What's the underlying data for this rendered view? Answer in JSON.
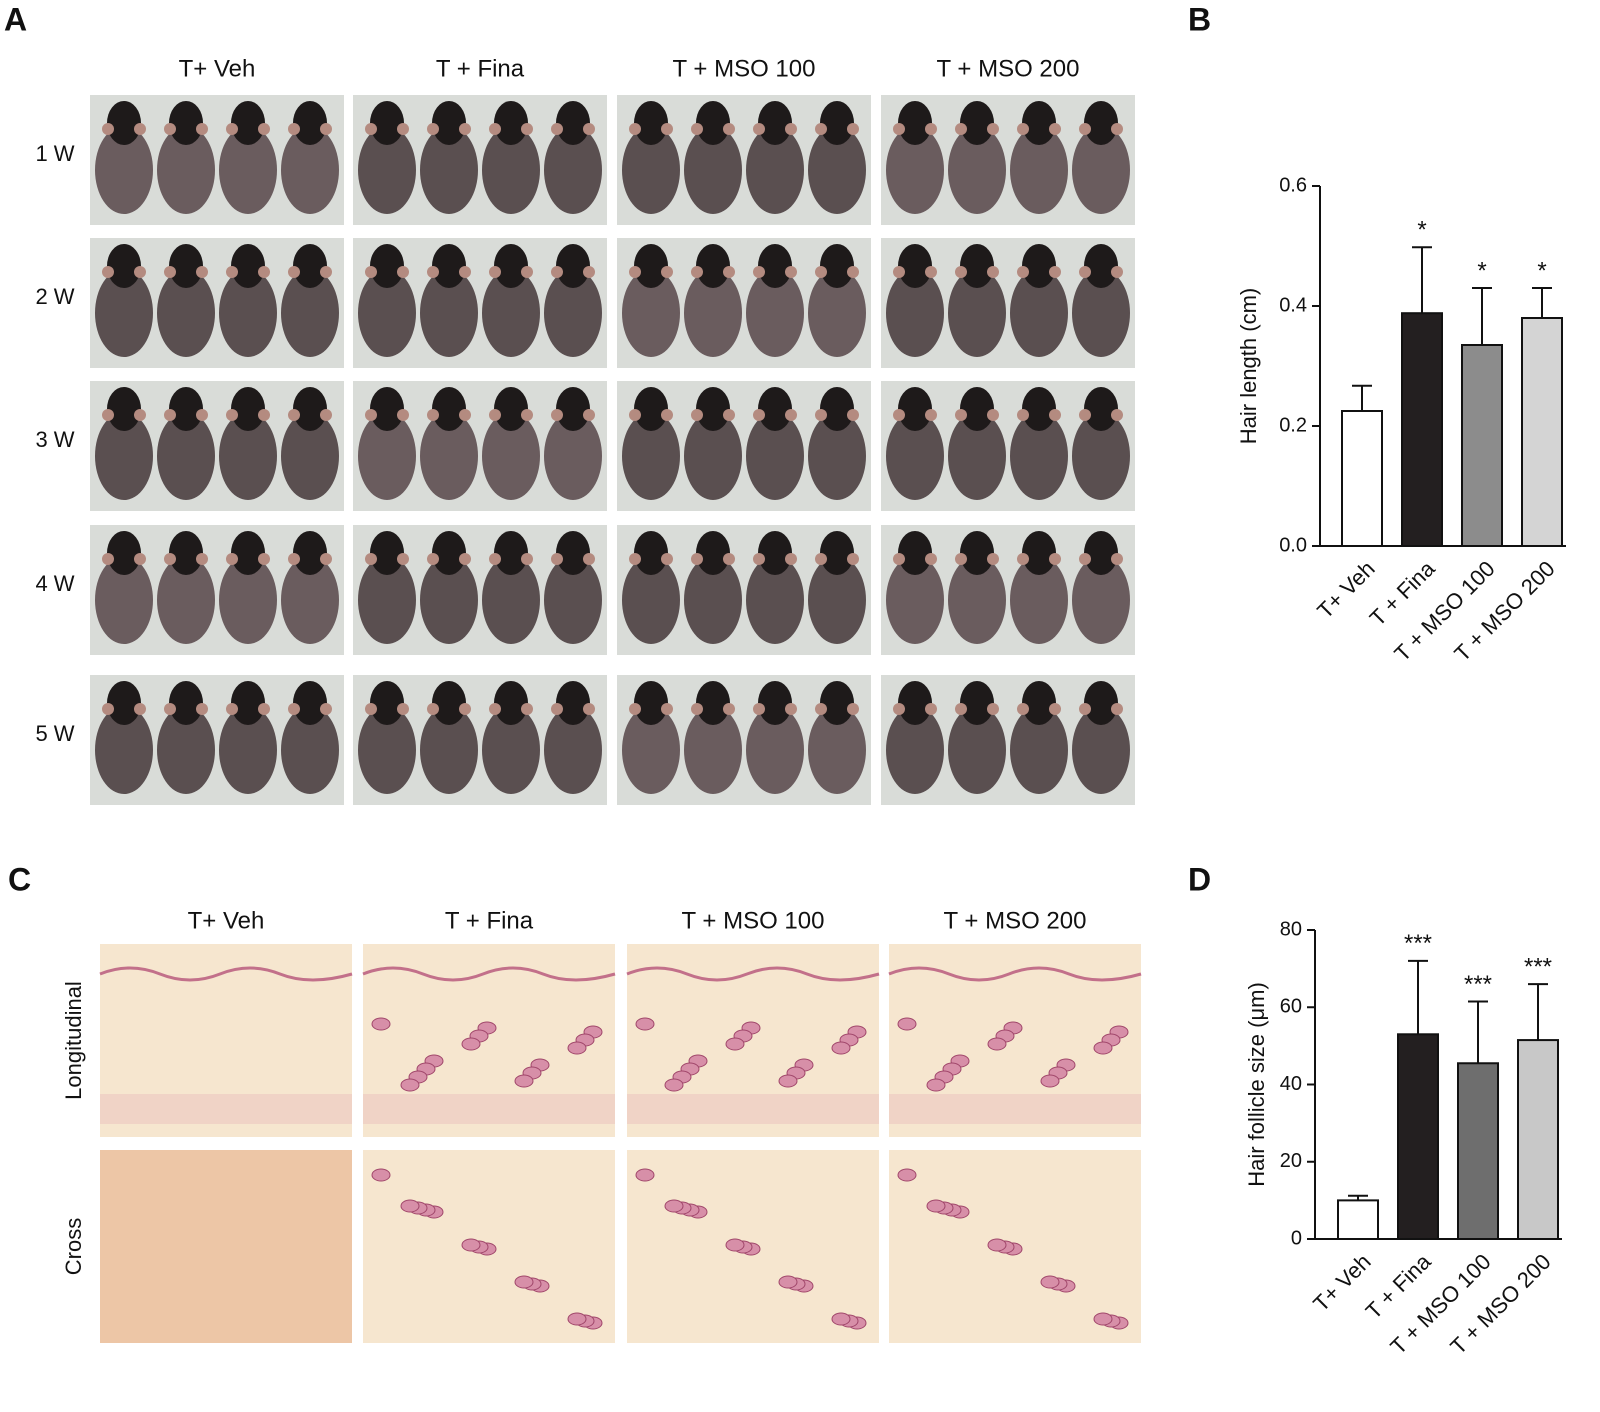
{
  "panels": {
    "A": {
      "label": "A",
      "columns": [
        "T+ Veh",
        "T + Fina",
        "T + MSO 100",
        "T + MSO 200"
      ],
      "rows": [
        "1 W",
        "2 W",
        "3 W",
        "4 W",
        "5 W"
      ]
    },
    "C": {
      "label": "C",
      "columns": [
        "T+ Veh",
        "T + Fina",
        "T + MSO 100",
        "T + MSO 200"
      ],
      "rows": [
        "Longitudinal",
        "Cross"
      ]
    }
  },
  "chart_data": [
    {
      "type": "bar",
      "panel_label": "B",
      "ylabel": "Hair length (cm)",
      "categories": [
        "T+ Veh",
        "T + Fina",
        "T + MSO 100",
        "T + MSO 200"
      ],
      "values": [
        0.225,
        0.388,
        0.335,
        0.38
      ],
      "errors": [
        0.042,
        0.11,
        0.095,
        0.05
      ],
      "colors": [
        "#ffffff",
        "#231f20",
        "#8c8c8c",
        "#d4d4d4"
      ],
      "significance": [
        null,
        "*",
        "*",
        "*"
      ],
      "ylim": [
        0,
        0.6
      ],
      "yticks": [
        {
          "value": 0,
          "label": "0.0"
        },
        0.2,
        0.4,
        0.6
      ]
    },
    {
      "type": "bar",
      "panel_label": "D",
      "ylabel": "Hair follicle size (μm)",
      "categories": [
        "T+ Veh",
        "T + Fina",
        "T + MSO 100",
        "T + MSO 200"
      ],
      "values": [
        10,
        53,
        45.5,
        51.5
      ],
      "errors": [
        1.2,
        19,
        16,
        14.5
      ],
      "colors": [
        "#ffffff",
        "#231f20",
        "#6e6e6e",
        "#c8c8c8"
      ],
      "significance": [
        null,
        "***",
        "***",
        "***"
      ],
      "ylim": [
        0,
        80
      ],
      "yticks": [
        0,
        20,
        40,
        60,
        80
      ]
    }
  ]
}
